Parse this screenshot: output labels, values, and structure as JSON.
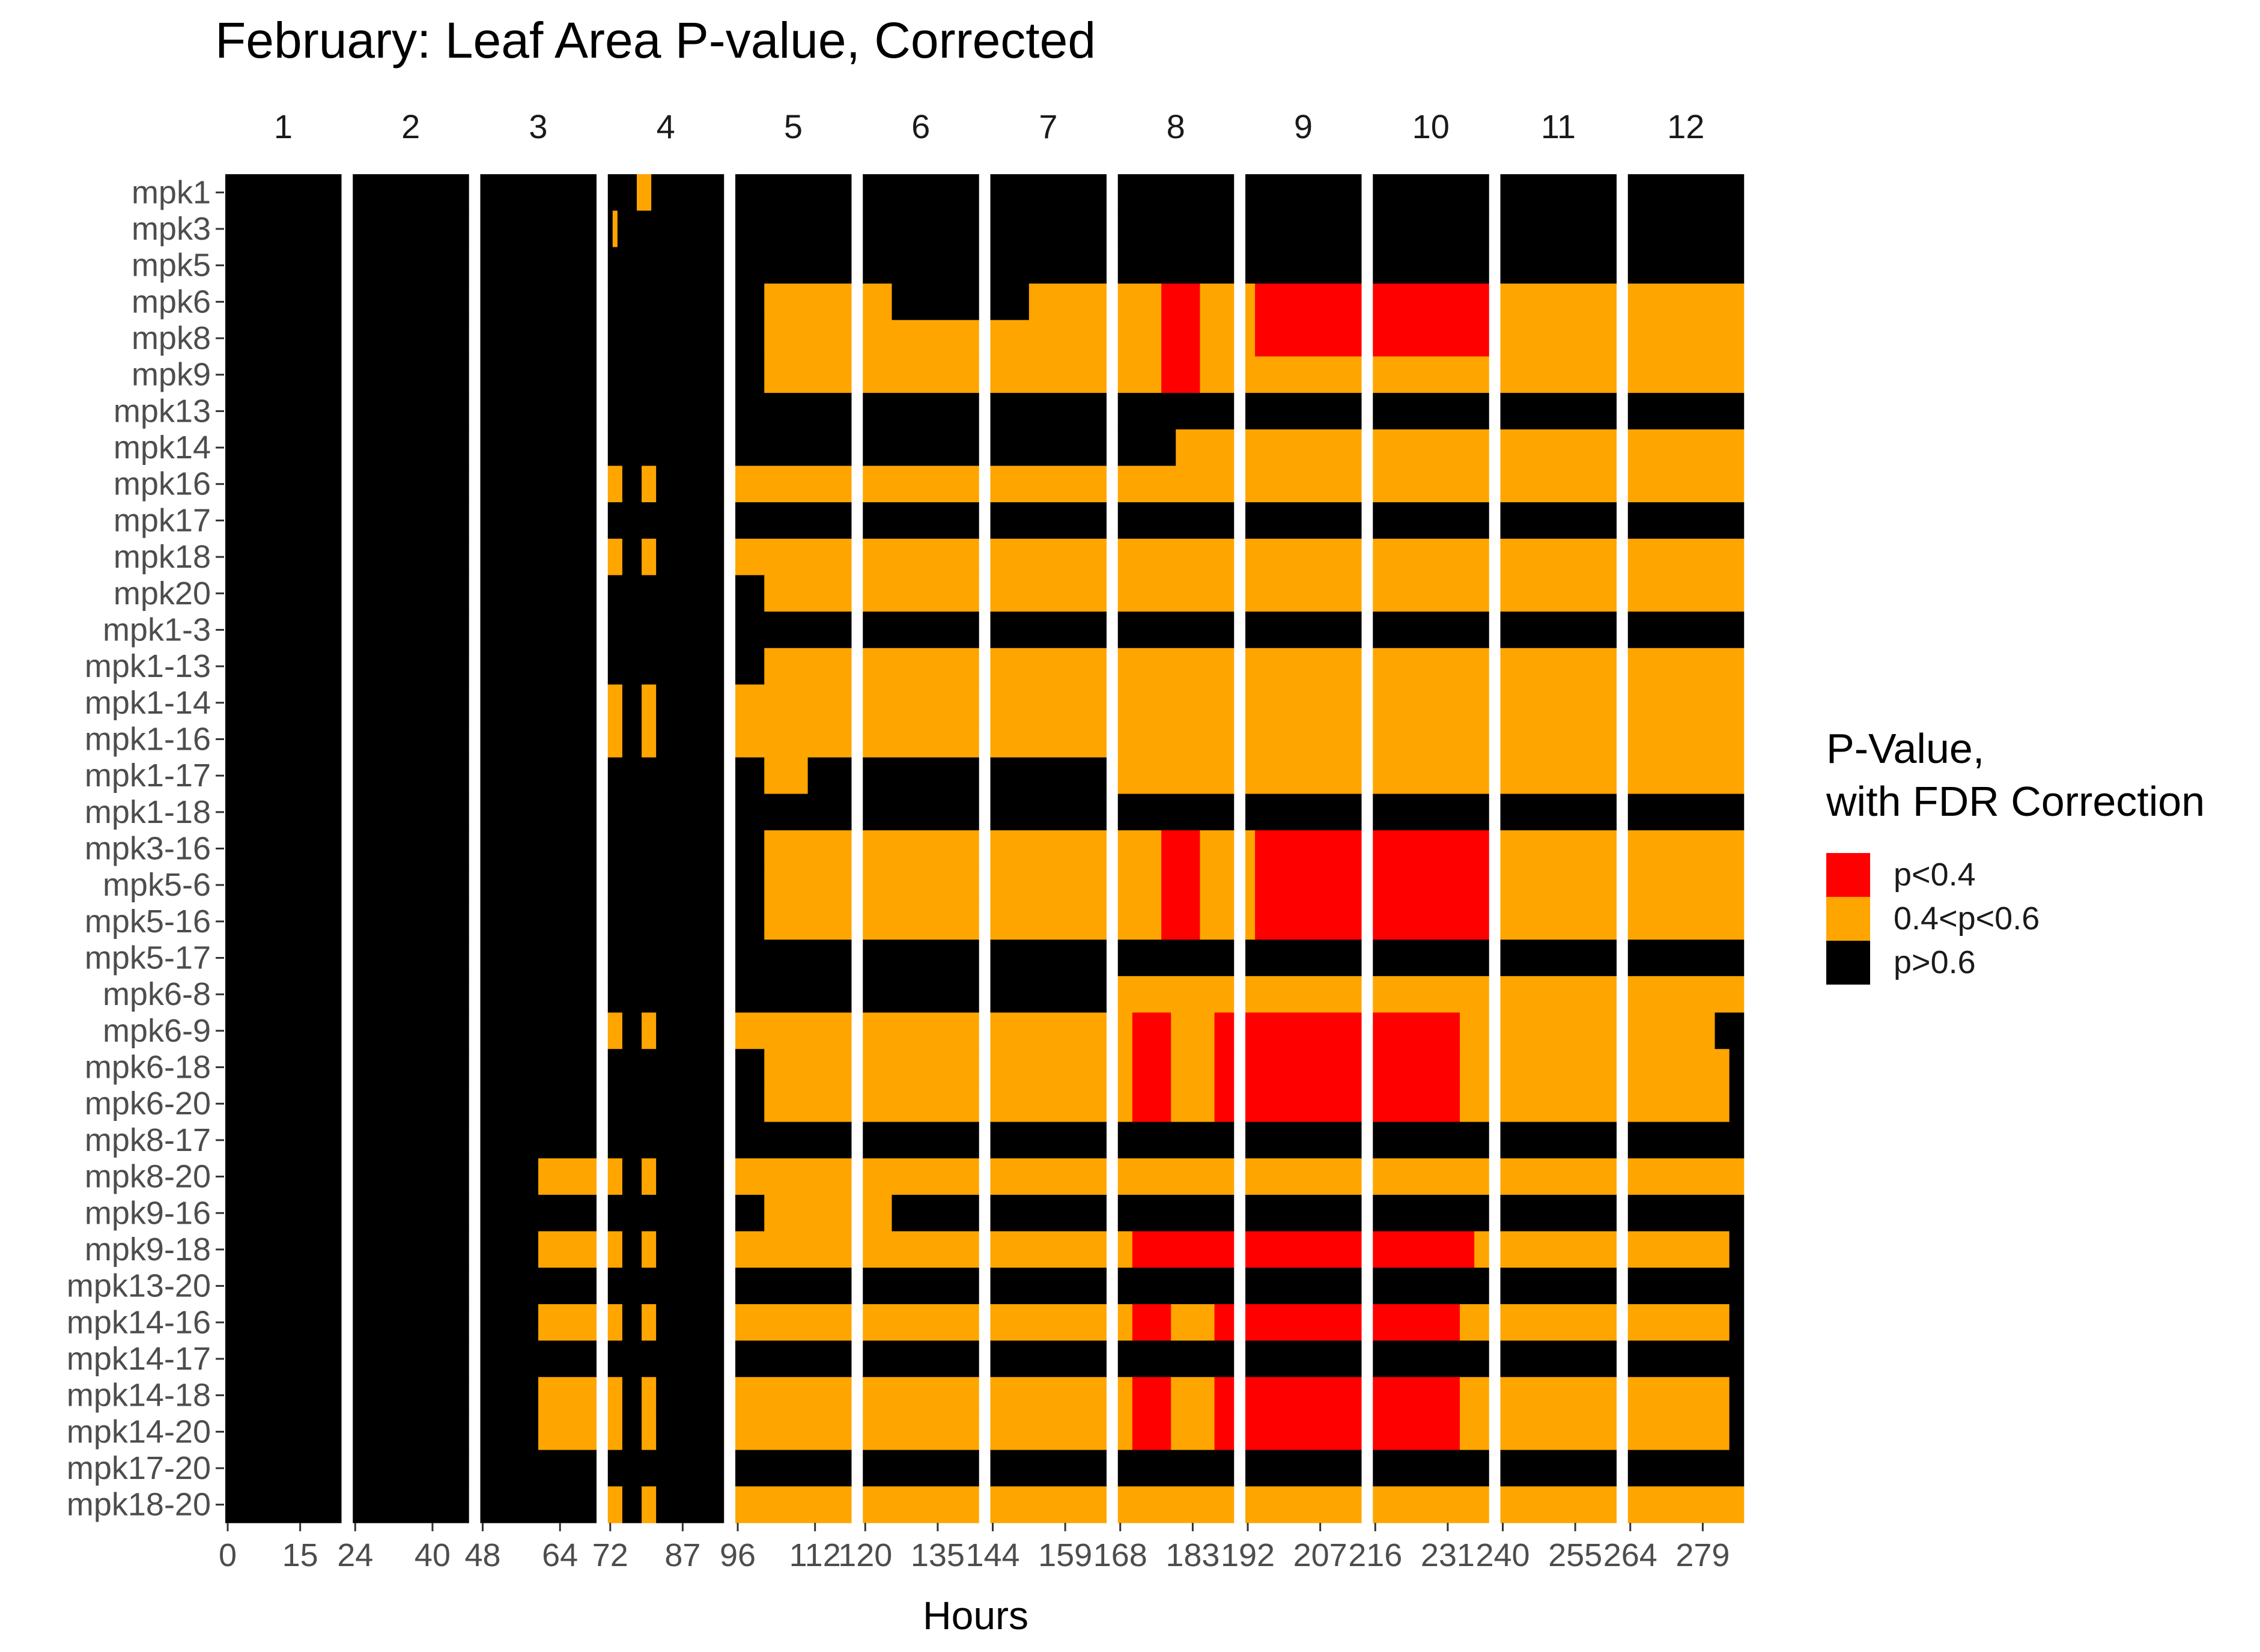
{
  "chart_data": {
    "type": "heatmap",
    "title": "February: Leaf Area P-value, Corrected",
    "xlabel": "Hours",
    "ylabel": "",
    "facets": [
      "1",
      "2",
      "3",
      "4",
      "5",
      "6",
      "7",
      "8",
      "9",
      "10",
      "11",
      "12"
    ],
    "facet_ranges": [
      [
        0,
        23
      ],
      [
        24,
        47
      ],
      [
        48,
        71
      ],
      [
        72,
        95
      ],
      [
        96,
        119
      ],
      [
        120,
        143
      ],
      [
        144,
        167
      ],
      [
        168,
        191
      ],
      [
        192,
        215
      ],
      [
        216,
        239
      ],
      [
        240,
        263
      ],
      [
        264,
        287
      ]
    ],
    "x_ticks": [
      [
        0,
        15
      ],
      [
        24,
        40
      ],
      [
        48,
        64
      ],
      [
        72,
        87
      ],
      [
        96,
        112
      ],
      [
        120,
        135
      ],
      [
        144,
        159
      ],
      [
        168,
        183
      ],
      [
        192,
        207
      ],
      [
        216,
        231
      ],
      [
        240,
        255
      ],
      [
        264,
        279
      ]
    ],
    "rows": [
      "mpk1",
      "mpk3",
      "mpk5",
      "mpk6",
      "mpk8",
      "mpk9",
      "mpk13",
      "mpk14",
      "mpk16",
      "mpk17",
      "mpk18",
      "mpk20",
      "mpk1-3",
      "mpk1-13",
      "mpk1-14",
      "mpk1-16",
      "mpk1-17",
      "mpk1-18",
      "mpk3-16",
      "mpk5-6",
      "mpk5-16",
      "mpk5-17",
      "mpk6-8",
      "mpk6-9",
      "mpk6-18",
      "mpk6-20",
      "mpk8-17",
      "mpk8-20",
      "mpk9-16",
      "mpk9-18",
      "mpk13-20",
      "mpk14-16",
      "mpk14-17",
      "mpk14-18",
      "mpk14-20",
      "mpk17-20",
      "mpk18-20"
    ],
    "legend": {
      "title_lines": [
        "P-Value,",
        "with FDR Correction"
      ],
      "placement": "right",
      "entries": [
        {
          "label": "p<0.4",
          "color": "#ff0000"
        },
        {
          "label": "0.4<p<0.6",
          "color": "#ffa500"
        },
        {
          "label": "p>0.6",
          "color": "#000000"
        }
      ]
    },
    "category_codes": {
      "0": "p<0.4",
      "1": "0.4<p<0.6",
      "2": "p>0.6"
    },
    "values": [
      "222222222222222222222222222222222222222222222222222222222222222222222222222222111222222222222222222222222222222222222222222222222222222222222222222222222222222222222222222222222222222222222222222222222222222222222222222222222222222222222222222222222222222222222222222222222222222222222222",
      "222222222222222222222222222222222222222222222222222222222222222222222222212222222222222222222222222222222222222222222222222222222222222222222222222222222222222222222222222222222222222222222222222222222222222222222222222222222222222222222222222222222222222222222222222222222222222222222222",
      "222222222222222222222222222222222222222222222222222222222222222222222222222222222222222222222222222222222222222222222222222222222222222222222222222222222222222222222222222222222222222222222222222222222222222222222222222222222222222222222222222222222222222222222222222222222222222222222222",
      "222222222222222222222222222222222222222222222222222222222222222222222222222222222222222222222222222222111111111111111111111111222222222222222222222222221111111111111111111111111000000001111111110000000000000000000000000000000000000000000000111111111111111111111111111111111111111111111111",
      "222222222222222222222222222222222222222222222222222222222222222222222222222222222222222222222222222222111111111111111111111111111111111111111111111111111111111111111111111111111000000001111111110000000000000000000000000000000000000000000000111111111111111111111111111111111111111111111111",
      "222222222222222222222222222222222222222222222222222222222222222222222222222222222222222222222222222222111111111111111111111111111111111111111111111111111111111111111111111111111000000001111111111111111111111111111111111111111111111111111111111111111111111111111111111111111111111111111111",
      "222222222222222222222222222222222222222222222222222222222222222222222222222222222222222222222222222222222222222222222222222222222222222222222222222222222222222222222222222222222222222222222222222222222222222222222222222222222222222222222222222222222222222222222222222222222222222222222222",
      "222222222222222222222222222222222222222222222222222222222222222222222222222222222222222222222222222222222222222222222222222222222222222222222222222222222222222222222222222222222222111111111111111111111111111111111111111111111111111111111111111111111111111111111111111111111111111111111111",
      "222222222222222222222222222222222222222222222222222222222222222222222222111222211122222222222222111111111111111111111111111111111111111111111111111111111111111111111111111111111111111111111111111111111111111111111111111111111111111111111111111111111111111111111111111111111111111111111111",
      "222222222222222222222222222222222222222222222222222222222222222222222222222222222222222222222222222222222222222222222222222222222222222222222222222222222222222222222222222222222222222222222222222222222222222222222222222222222222222222222222222222222222222222222222222222222222222222222222",
      "222222222222222222222222222222222222222222222222222222222222222222222222111222211122222222222222111111111111111111111111111111111111111111111111111111111111111111111111111111111111111111111111111111111111111111111111111111111111111111111111111111111111111111111111111111111111111111111111",
      "222222222222222222222222222222222222222222222222222222222222222222222222222222222222222222222222222222111111111111111111111111111111111111111111111111111111111111111111111111111111111111111111111111111111111111111111111111111111111111111111111111111111111111111111111111111111111111111111",
      "222222222222222222222222222222222222222222222222222222222222222222222222222222222222222222222222222222222222222222222222222222222222222222222222222222222222222222222222222222222222222222222222222222222222222222222222222222222222222222222222222222222222222222222222222222222222222222222222",
      "222222222222222222222222222222222222222222222222222222222222222222222222222222222222222222222222222222111111111111111111111111111111111111111111111111111111111111111111111111111111111111111111111111111111111111111111111111111111111111111111111111111111111111111111111111111111111111111111",
      "222222222222222222222222222222222222222222222222222222222222222222222222111222211122222222222222111111111111111111111111111111111111111111111111111111111111111111111111111111111111111111111111111111111111111111111111111111111111111111111111111111111111111111111111111111111111111111111111",
      "222222222222222222222222222222222222222222222222222222222222222222222222111222211122222222222222111111111111111111111111111111111111111111111111111111111111111111111111111111111111111111111111111111111111111111111111111111111111111111111111111111111111111111111111111111111111111111111111",
      "222222222222222222222222222222222222222222222222222222222222222222222222222222222222222222222222222222111111111222222222222222222222222222222222222222222222222222222222111111111111111111111111111111111111111111111111111111111111111111111111111111111111111111111111111111111111111111111111",
      "222222222222222222222222222222222222222222222222222222222222222222222222222222222222222222222222222222222222222222222222222222222222222222222222222222222222222222222222222222222222222222222222222222222222222222222222222222222222222222222222222222222222222222222222222222222222222222222222",
      "222222222222222222222222222222222222222222222222222222222222222222222222222222222222222222222222222222111111111111111111111111111111111111111111111111111111111111111111111111111000000001111111110000000000000000000000000000000000000000000000111111111111111111111111111111111111111111111111",
      "222222222222222222222222222222222222222222222222222222222222222222222222222222222222222222222222222222111111111111111111111111111111111111111111111111111111111111111111111111111000000001111111110000000000000000000000000000000000000000000000111111111111111111111111111111111111111111111111",
      "222222222222222222222222222222222222222222222222222222222222222222222222222222222222222222222222222222111111111111111111111111111111111111111111111111111111111111111111111111111000000001111111110000000000000000000000000000000000000000000000111111111111111111111111111111111111111111111111",
      "222222222222222222222222222222222222222222222222222222222222222222222222222222222222222222222222222222222222222222222222222222222222222222222222222222222222222222222222222222222222222222222222222222222222222222222222222222222222222222222222222222222222222222222222222222222222222222222222",
      "222222222222222222222222222222222222222222222222222222222222222222222222222222222222222222222222222222222222222222222222222222222222222222222222222222222222222222222222111111111111111111111111111111111111111111111111111111111111111111111111111111111111111111111111111111111111111111111111",
      "222222222222222222222222222222222222222222222222222222222222222222222222111222211122222222222222111111111111111111111111111111111111111111111111111111111111111111111111111000000001111111110000000000000000000000000000000000000000000000111111111111111111111111111111111111111111111111",
      "222222222222222222222222222222222222222222222222222222222222222222222222222222222222222222222222222222111111111111111111111111111111111111111111111111111111111111111111111000000001111111110000000000000000000000000000000000000000000000111111111111111111111111111111111111111111111111111",
      "222222222222222222222222222222222222222222222222222222222222222222222222222222222222222222222222222222111111111111111111111111111111111111111111111111111111111111111111111000000001111111110000000000000000000000000000000000000000000000111111111111111111111111111111111111111111111111111",
      "222222222222222222222222222222222222222222222222222222222222222222222222222222222222222222222222222222222222222222222222222222222222222222222222222222222222222222222222222222222222222222222222222222222222222222222222222222222222222222222222222222222222222222222222222222222222222222222222",
      "222222222222222222222222222222222222222222222222222222222222111111111111111222211122222222222222111111111111111111111111111111111111111111111111111111111111111111111111111111111111111111111111111111111111111111111111111111111111111111111111111111111111111111111111111111111111111111111111",
      "222222222222222222222222222222222222222222222222222222222222222222222222222222222222222222222222222222111111111111111111111111222222222222222222222222222222222222222222222222222222222222222222222222222222222222222222222222222222222222222222222222222222222222222222222222222222222222222222",
      "222222222222222222222222222222222222222222222222222222222222111111111111111222211122222222222222111111111111111111111111111111111111111111111111111111111111111111111111111000000000000000000000000000000000000000000000000000000000000000000111111111111111111111111111111111111111111111111",
      "222222222222222222222222222222222222222222222222222222222222222222222222222222222222222222222222222222222222222222222222222222222222222222222222222222222222222222222222222222222222222222222222222222222222222222222222222222222222222222222222222222222222222222222222222222222222222222222222",
      "222222222222222222222222222222222222222222222222222222222222111111111111111222211122222222222222111111111111111111111111111111111111111111111111111111111111111111111111111000000001111111110000000000000000000000000000000000000000000000111111111111111111111111111111111111111111111111111",
      "222222222222222222222222222222222222222222222222222222222222222222222222222222222222222222222222222222222222222222222222222222222222222222222222222222222222222222222222222222222222222222222222222222222222222222222222222222222222222222222222222222222222222222222222222222222222222222222222",
      "222222222222222222222222222222222222222222222222222222222222111111111111111222211122222222222222111111111111111111111111111111111111111111111111111111111111111111111111111000000001111111110000000000000000000000000000000000000000000000111111111111111111111111111111111111111111111111111",
      "222222222222222222222222222222222222222222222222222222222222111111111111111222211122222222222222111111111111111111111111111111111111111111111111111111111111111111111111111000000001111111110000000000000000000000000000000000000000000000111111111111111111111111111111111111111111111111111",
      "222222222222222222222222222222222222222222222222222222222222222222222222222222222222222222222222222222222222222222222222222222222222222222222222222222222222222222222222222222222222222222222222222222222222222222222222222222222222222222222222222222222222222222222222222222222222222222222222",
      "222222222222222222222222222222222222222222222222222222222222222222222222111222211122222222222222111111111111111111111111111111111111111111111111111111111111111111111111111111111111111111111111111111111111111111111111111111111111111111111111111111111111111111111111111111111111111111111111"
    ]
  }
}
